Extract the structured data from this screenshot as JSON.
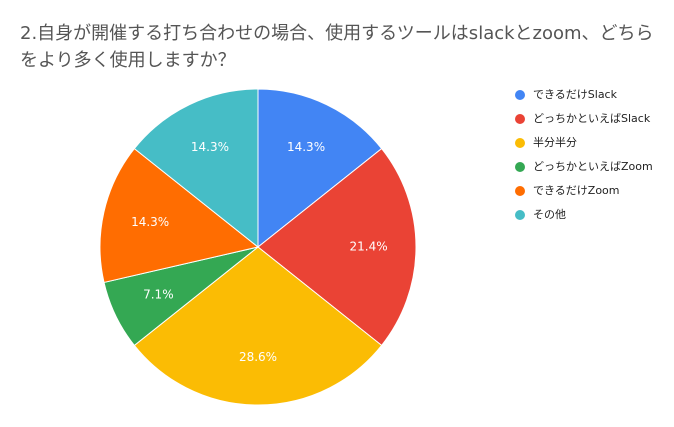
{
  "chart_data": {
    "type": "pie",
    "title": "2.自身が開催する打ち合わせの場合、使用するツールはslackとzoom、どちらをより多く使用しますか？",
    "categories": [
      "できるだけSlack",
      "どっちかといえばSlack",
      "半分半分",
      "どっちかといえばZoom",
      "できるだけZoom",
      "その他"
    ],
    "values": [
      14.3,
      21.4,
      28.6,
      7.1,
      14.3,
      14.3
    ],
    "value_labels": [
      "14.3%",
      "21.4%",
      "28.6%",
      "7.1%",
      "14.3%",
      "14.3%"
    ],
    "colors": [
      "#4285f4",
      "#ea4335",
      "#fbbc04",
      "#34a853",
      "#ff6d01",
      "#46bdc6"
    ],
    "legend": "right"
  }
}
